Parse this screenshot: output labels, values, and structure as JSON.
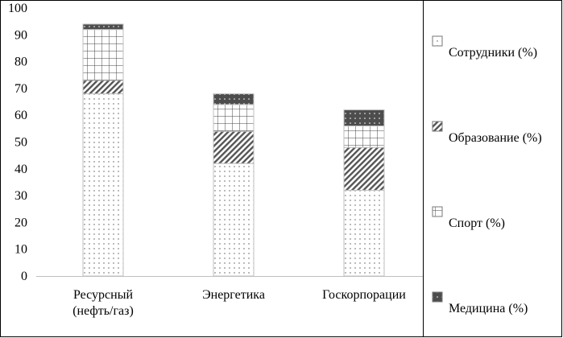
{
  "chart_data": {
    "type": "bar",
    "stacked": true,
    "categories": [
      [
        "Ресурсный",
        "(нефть/газ)"
      ],
      [
        "Энергетика"
      ],
      [
        "Госкорпорации"
      ]
    ],
    "series": [
      {
        "name": "Сотрудники (%)",
        "values": [
          68,
          42,
          32
        ],
        "pattern": "dots"
      },
      {
        "name": "Образование (%)",
        "values": [
          5,
          12,
          16
        ],
        "pattern": "diagonal"
      },
      {
        "name": "Спорт (%)",
        "values": [
          19,
          10,
          8
        ],
        "pattern": "grid"
      },
      {
        "name": "Медицина (%)",
        "values": [
          2,
          4,
          6
        ],
        "pattern": "dark-dots"
      }
    ],
    "ylim": [
      0,
      100
    ],
    "yticks": [
      0,
      10,
      20,
      30,
      40,
      50,
      60,
      70,
      80,
      90,
      100
    ],
    "grid": false,
    "legend_position": "right",
    "colors": {
      "bar_edge": "#bfbfbf",
      "dark_fill": "#4d4d4d",
      "frame": "#000000"
    }
  }
}
